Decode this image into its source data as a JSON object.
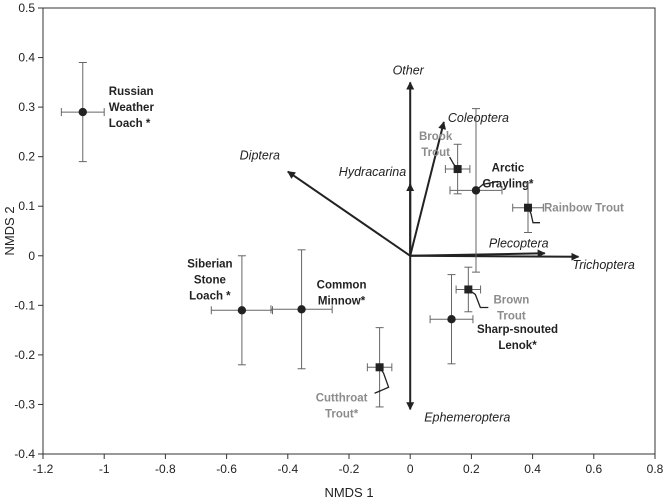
{
  "chart_data": {
    "type": "scatter",
    "title": "",
    "xlabel": "NMDS 1",
    "ylabel": "NMDS 2",
    "xlim": [
      -1.2,
      0.8
    ],
    "ylim": [
      -0.4,
      0.5
    ],
    "xticks": [
      "-1.2",
      "-1",
      "-0.8",
      "-0.6",
      "-0.4",
      "-0.2",
      "0",
      "0.2",
      "0.4",
      "0.6",
      "0.8"
    ],
    "yticks": [
      "0.5",
      "0.4",
      "0.3",
      "0.2",
      "0.1",
      "0",
      "-0.1",
      "-0.2",
      "-0.3",
      "-0.4"
    ],
    "grid": false,
    "colors": {
      "native": "#222222",
      "introduced": "#8c8c8c",
      "axis": "#333333",
      "errorbar": "#666666"
    },
    "vectors": [
      {
        "name": "Other",
        "x": 0.0,
        "y": 0.35
      },
      {
        "name": "Coleoptera",
        "x": 0.11,
        "y": 0.27
      },
      {
        "name": "Diptera",
        "x": -0.4,
        "y": 0.17
      },
      {
        "name": "Hydracarina",
        "x": 0.0,
        "y": 0.145
      },
      {
        "name": "Plecoptera",
        "x": 0.44,
        "y": 0.005
      },
      {
        "name": "Trichoptera",
        "x": 0.55,
        "y": -0.002
      },
      {
        "name": "Ephemeroptera",
        "x": 0.0,
        "y": -0.31
      }
    ],
    "species": [
      {
        "name": "Russian Weather Loach *",
        "lines": [
          "Russian",
          "Weather",
          "Loach *"
        ],
        "marker": "circle",
        "group": "native",
        "x": -1.07,
        "y": 0.29,
        "xerr": 0.07,
        "yerr": 0.1
      },
      {
        "name": "Brook Trout",
        "lines": [
          "Brook",
          "Trout"
        ],
        "marker": "square",
        "group": "introduced",
        "x": 0.155,
        "y": 0.175,
        "xerr": 0.04,
        "yerr": 0.05
      },
      {
        "name": "Arctic Grayling*",
        "lines": [
          "Arctic",
          "Grayling*"
        ],
        "marker": "circle",
        "group": "native",
        "x": 0.215,
        "y": 0.132,
        "xerr": 0.085,
        "yerr": 0.165
      },
      {
        "name": "Rainbow Trout",
        "lines": [
          "Rainbow Trout"
        ],
        "marker": "square",
        "group": "introduced",
        "x": 0.385,
        "y": 0.097,
        "xerr": 0.05,
        "yerr": 0.05
      },
      {
        "name": "Siberian Stone Loach *",
        "lines": [
          "Siberian",
          "Stone",
          "Loach *"
        ],
        "marker": "circle",
        "group": "native",
        "x": -0.55,
        "y": -0.11,
        "xerr": 0.1,
        "yerr": 0.11
      },
      {
        "name": "Common Minnow*",
        "lines": [
          "Common",
          "Minnow*"
        ],
        "marker": "circle",
        "group": "native",
        "x": -0.355,
        "y": -0.108,
        "xerr": 0.1,
        "yerr": 0.12
      },
      {
        "name": "Brown Trout",
        "lines": [
          "Brown",
          "Trout"
        ],
        "marker": "square",
        "group": "introduced",
        "x": 0.19,
        "y": -0.068,
        "xerr": 0.04,
        "yerr": 0.045
      },
      {
        "name": "Sharp-snouted Lenok*",
        "lines": [
          "Sharp-snouted",
          "Lenok*"
        ],
        "marker": "circle",
        "group": "native",
        "x": 0.135,
        "y": -0.128,
        "xerr": 0.07,
        "yerr": 0.09
      },
      {
        "name": "Cutthroat Trout*",
        "lines": [
          "Cutthroat",
          "Trout*"
        ],
        "marker": "square",
        "group": "introduced",
        "x": -0.1,
        "y": -0.225,
        "xerr": 0.04,
        "yerr": 0.08
      }
    ]
  }
}
